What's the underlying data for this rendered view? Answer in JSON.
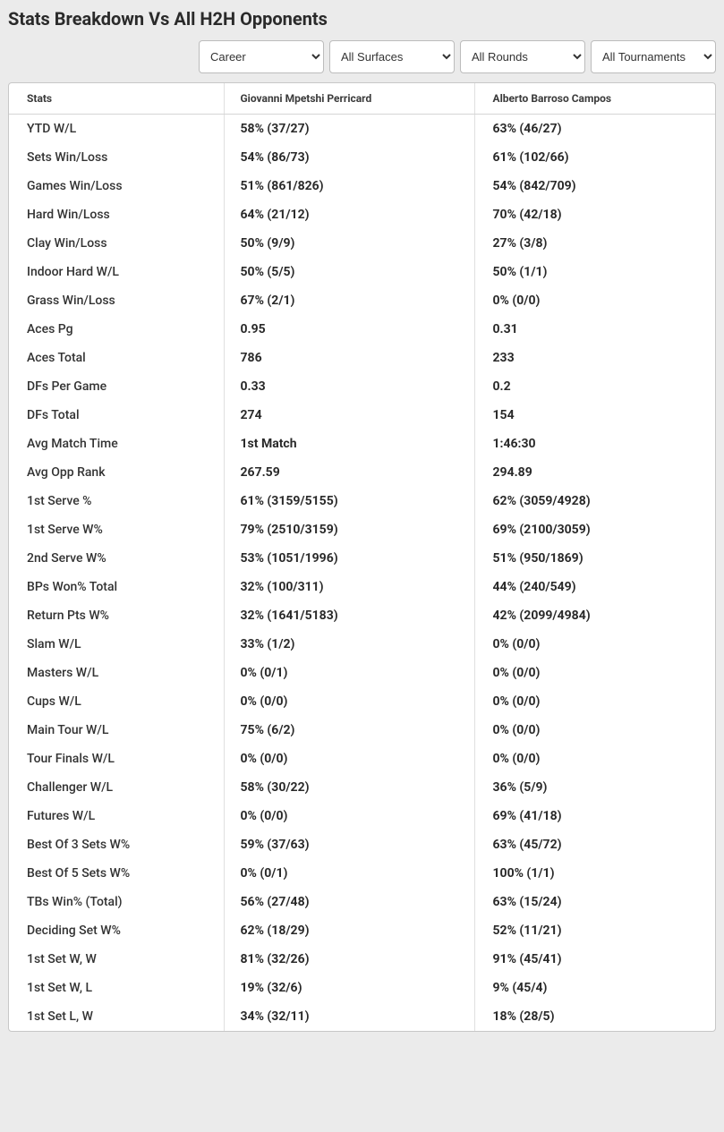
{
  "title": "Stats Breakdown Vs All H2H Opponents",
  "filters": {
    "career": "Career",
    "surfaces": "All Surfaces",
    "rounds": "All Rounds",
    "tournaments": "All Tournaments"
  },
  "columns": {
    "stats": "Stats",
    "p1": "Giovanni Mpetshi Perricard",
    "p2": "Alberto Barroso Campos"
  },
  "rows": [
    {
      "label": "YTD W/L",
      "p1": "58% (37/27)",
      "p2": "63% (46/27)"
    },
    {
      "label": "Sets Win/Loss",
      "p1": "54% (86/73)",
      "p2": "61% (102/66)"
    },
    {
      "label": "Games Win/Loss",
      "p1": "51% (861/826)",
      "p2": "54% (842/709)"
    },
    {
      "label": "Hard Win/Loss",
      "p1": "64% (21/12)",
      "p2": "70% (42/18)"
    },
    {
      "label": "Clay Win/Loss",
      "p1": "50% (9/9)",
      "p2": "27% (3/8)"
    },
    {
      "label": "Indoor Hard W/L",
      "p1": "50% (5/5)",
      "p2": "50% (1/1)"
    },
    {
      "label": "Grass Win/Loss",
      "p1": "67% (2/1)",
      "p2": "0% (0/0)"
    },
    {
      "label": "Aces Pg",
      "p1": "0.95",
      "p2": "0.31"
    },
    {
      "label": "Aces Total",
      "p1": "786",
      "p2": "233"
    },
    {
      "label": "DFs Per Game",
      "p1": "0.33",
      "p2": "0.2"
    },
    {
      "label": "DFs Total",
      "p1": "274",
      "p2": "154"
    },
    {
      "label": "Avg Match Time",
      "p1": "1st Match",
      "p2": "1:46:30"
    },
    {
      "label": "Avg Opp Rank",
      "p1": "267.59",
      "p2": "294.89"
    },
    {
      "label": "1st Serve %",
      "p1": "61% (3159/5155)",
      "p2": "62% (3059/4928)"
    },
    {
      "label": "1st Serve W%",
      "p1": "79% (2510/3159)",
      "p2": "69% (2100/3059)"
    },
    {
      "label": "2nd Serve W%",
      "p1": "53% (1051/1996)",
      "p2": "51% (950/1869)"
    },
    {
      "label": "BPs Won% Total",
      "p1": "32% (100/311)",
      "p2": "44% (240/549)"
    },
    {
      "label": "Return Pts W%",
      "p1": "32% (1641/5183)",
      "p2": "42% (2099/4984)"
    },
    {
      "label": "Slam W/L",
      "p1": "33% (1/2)",
      "p2": "0% (0/0)"
    },
    {
      "label": "Masters W/L",
      "p1": "0% (0/1)",
      "p2": "0% (0/0)"
    },
    {
      "label": "Cups W/L",
      "p1": "0% (0/0)",
      "p2": "0% (0/0)"
    },
    {
      "label": "Main Tour W/L",
      "p1": "75% (6/2)",
      "p2": "0% (0/0)"
    },
    {
      "label": "Tour Finals W/L",
      "p1": "0% (0/0)",
      "p2": "0% (0/0)"
    },
    {
      "label": "Challenger W/L",
      "p1": "58% (30/22)",
      "p2": "36% (5/9)"
    },
    {
      "label": "Futures W/L",
      "p1": "0% (0/0)",
      "p2": "69% (41/18)"
    },
    {
      "label": "Best Of 3 Sets W%",
      "p1": "59% (37/63)",
      "p2": "63% (45/72)"
    },
    {
      "label": "Best Of 5 Sets W%",
      "p1": "0% (0/1)",
      "p2": "100% (1/1)"
    },
    {
      "label": "TBs Win% (Total)",
      "p1": "56% (27/48)",
      "p2": "63% (15/24)"
    },
    {
      "label": "Deciding Set W%",
      "p1": "62% (18/29)",
      "p2": "52% (11/21)"
    },
    {
      "label": "1st Set W, W",
      "p1": "81% (32/26)",
      "p2": "91% (45/41)"
    },
    {
      "label": "1st Set W, L",
      "p1": "19% (32/6)",
      "p2": "9% (45/4)"
    },
    {
      "label": "1st Set L, W",
      "p1": "34% (32/11)",
      "p2": "18% (28/5)"
    }
  ]
}
